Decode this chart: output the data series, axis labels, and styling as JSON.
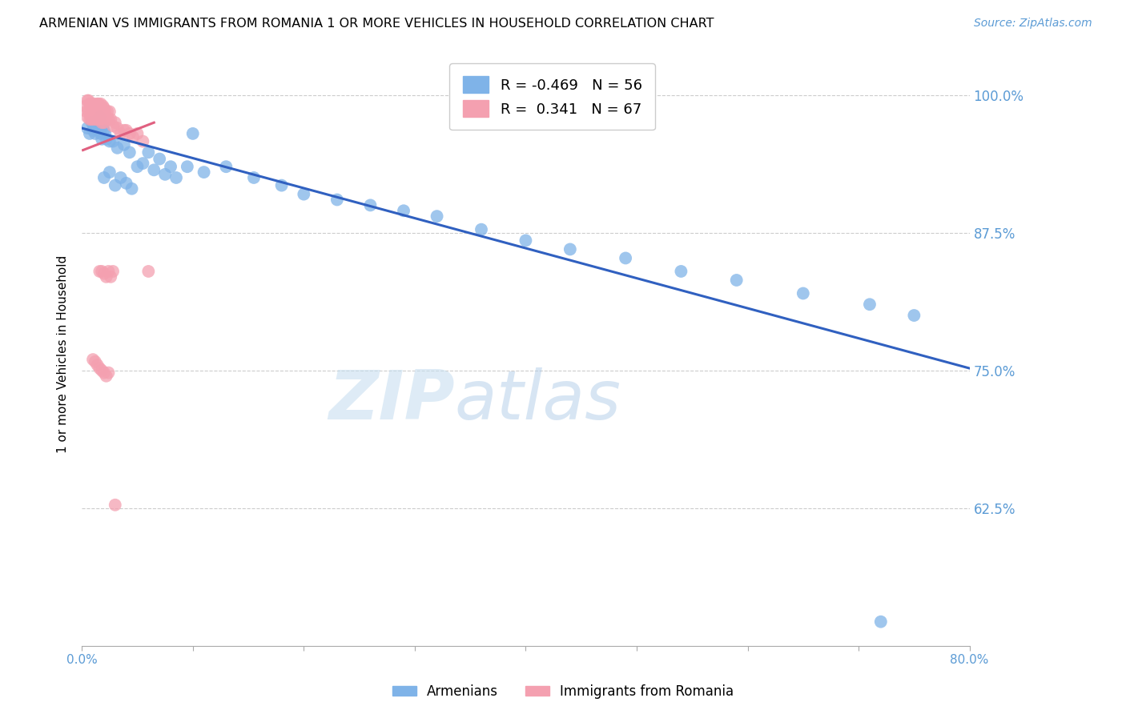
{
  "title": "ARMENIAN VS IMMIGRANTS FROM ROMANIA 1 OR MORE VEHICLES IN HOUSEHOLD CORRELATION CHART",
  "source": "Source: ZipAtlas.com",
  "ylabel": "1 or more Vehicles in Household",
  "ytick_labels": [
    "62.5%",
    "75.0%",
    "87.5%",
    "100.0%"
  ],
  "ytick_values": [
    0.625,
    0.75,
    0.875,
    1.0
  ],
  "xlim": [
    0.0,
    0.8
  ],
  "ylim": [
    0.5,
    1.03
  ],
  "legend_armenians": "Armenians",
  "legend_romania": "Immigrants from Romania",
  "R_armenians": -0.469,
  "N_armenians": 56,
  "R_romania": 0.341,
  "N_romania": 67,
  "color_armenians": "#7fb3e8",
  "color_romania": "#f4a0b0",
  "trendline_armenians_color": "#3060c0",
  "trendline_romania_color": "#e06080",
  "watermark_zip": "ZIP",
  "watermark_atlas": "atlas",
  "arm_x": [
    0.005,
    0.007,
    0.009,
    0.01,
    0.011,
    0.012,
    0.013,
    0.014,
    0.015,
    0.016,
    0.017,
    0.018,
    0.019,
    0.02,
    0.021,
    0.022,
    0.025,
    0.028,
    0.032,
    0.038,
    0.043,
    0.05,
    0.06,
    0.07,
    0.08,
    0.095,
    0.11,
    0.13,
    0.155,
    0.18,
    0.2,
    0.23,
    0.26,
    0.29,
    0.32,
    0.36,
    0.4,
    0.44,
    0.49,
    0.54,
    0.59,
    0.65,
    0.71,
    0.75,
    0.02,
    0.025,
    0.03,
    0.035,
    0.04,
    0.045,
    0.055,
    0.065,
    0.075,
    0.085,
    0.1,
    0.72
  ],
  "arm_y": [
    0.97,
    0.965,
    0.975,
    0.968,
    0.972,
    0.965,
    0.975,
    0.972,
    0.968,
    0.98,
    0.965,
    0.96,
    0.972,
    0.968,
    0.965,
    0.96,
    0.958,
    0.958,
    0.952,
    0.955,
    0.948,
    0.935,
    0.948,
    0.942,
    0.935,
    0.935,
    0.93,
    0.935,
    0.925,
    0.918,
    0.91,
    0.905,
    0.9,
    0.895,
    0.89,
    0.878,
    0.868,
    0.86,
    0.852,
    0.84,
    0.832,
    0.82,
    0.81,
    0.8,
    0.925,
    0.93,
    0.918,
    0.925,
    0.92,
    0.915,
    0.938,
    0.932,
    0.928,
    0.925,
    0.965,
    0.522
  ],
  "rom_x": [
    0.003,
    0.004,
    0.005,
    0.005,
    0.006,
    0.006,
    0.007,
    0.007,
    0.008,
    0.008,
    0.009,
    0.009,
    0.01,
    0.01,
    0.011,
    0.011,
    0.012,
    0.012,
    0.013,
    0.013,
    0.014,
    0.014,
    0.015,
    0.015,
    0.016,
    0.016,
    0.017,
    0.017,
    0.018,
    0.018,
    0.019,
    0.019,
    0.02,
    0.02,
    0.021,
    0.022,
    0.023,
    0.024,
    0.025,
    0.026,
    0.028,
    0.03,
    0.032,
    0.035,
    0.038,
    0.04,
    0.043,
    0.046,
    0.05,
    0.055,
    0.016,
    0.018,
    0.02,
    0.022,
    0.024,
    0.026,
    0.028,
    0.01,
    0.012,
    0.014,
    0.016,
    0.018,
    0.02,
    0.022,
    0.024,
    0.03,
    0.06
  ],
  "rom_y": [
    0.99,
    0.985,
    0.995,
    0.98,
    0.995,
    0.985,
    0.992,
    0.978,
    0.99,
    0.98,
    0.992,
    0.978,
    0.99,
    0.98,
    0.992,
    0.978,
    0.99,
    0.98,
    0.99,
    0.978,
    0.992,
    0.978,
    0.992,
    0.982,
    0.99,
    0.978,
    0.992,
    0.98,
    0.988,
    0.975,
    0.99,
    0.978,
    0.988,
    0.975,
    0.985,
    0.98,
    0.985,
    0.978,
    0.985,
    0.978,
    0.972,
    0.975,
    0.97,
    0.965,
    0.968,
    0.968,
    0.965,
    0.962,
    0.965,
    0.958,
    0.84,
    0.84,
    0.838,
    0.835,
    0.84,
    0.835,
    0.84,
    0.76,
    0.758,
    0.755,
    0.752,
    0.75,
    0.748,
    0.745,
    0.748,
    0.628,
    0.84
  ]
}
